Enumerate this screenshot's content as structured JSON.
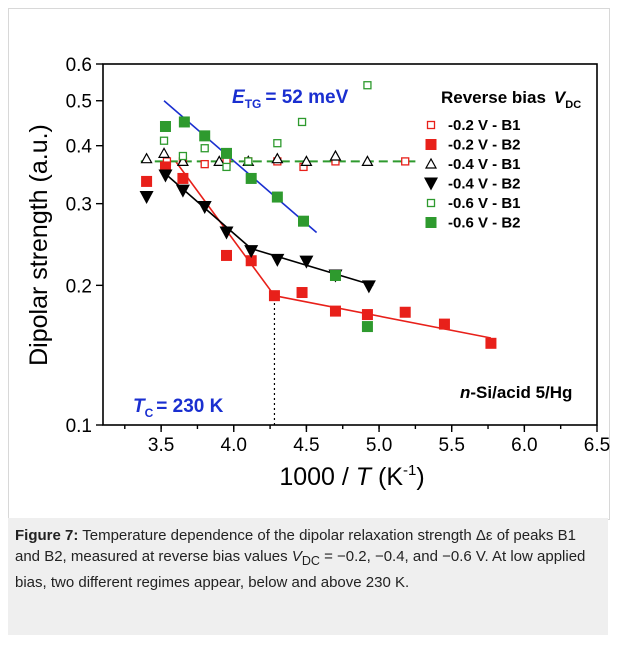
{
  "chart_data": {
    "type": "scatter",
    "xlabel_main": "1000 / ",
    "xlabel_var": "T",
    "xlabel_unit_open": " (K",
    "xlabel_unit_sup": "-1",
    "xlabel_unit_close": ")",
    "ylabel": "Dipolar strength (a.u.)",
    "xlim": [
      3.1,
      6.5
    ],
    "ylim": [
      0.1,
      0.6
    ],
    "yscale": "log",
    "x_ticks": [
      "3.5",
      "4.0",
      "4.5",
      "5.0",
      "5.5",
      "6.0",
      "6.5"
    ],
    "y_ticks": [
      "0.1",
      "0.2",
      "0.3",
      "0.4",
      "0.5",
      "0.6"
    ],
    "legend_title": "Reverse bias",
    "legend_title_var": "V",
    "legend_title_sub": "DC",
    "legend_placement": "right",
    "series": [
      {
        "name": "-0.2 V - B1",
        "color": "#e8201a",
        "marker": "square-open",
        "points": [
          [
            3.54,
            0.37
          ],
          [
            3.65,
            0.37
          ],
          [
            3.8,
            0.365
          ],
          [
            3.95,
            0.37
          ],
          [
            4.1,
            0.37
          ],
          [
            4.3,
            0.37
          ],
          [
            4.48,
            0.36
          ],
          [
            4.7,
            0.37
          ],
          [
            5.18,
            0.37
          ]
        ]
      },
      {
        "name": "-0.2 V - B2",
        "color": "#e8201a",
        "marker": "square-filled",
        "points": [
          [
            3.4,
            0.335
          ],
          [
            3.53,
            0.36
          ],
          [
            3.65,
            0.34
          ],
          [
            3.95,
            0.232
          ],
          [
            4.12,
            0.226
          ],
          [
            4.28,
            0.19
          ],
          [
            4.47,
            0.193
          ],
          [
            4.7,
            0.176
          ],
          [
            4.92,
            0.173
          ],
          [
            5.18,
            0.175
          ],
          [
            5.45,
            0.165
          ],
          [
            5.77,
            0.15
          ]
        ]
      },
      {
        "name": "-0.4 V - B1",
        "color": "#000000",
        "marker": "triangle-up-open",
        "points": [
          [
            3.4,
            0.375
          ],
          [
            3.52,
            0.385
          ],
          [
            3.65,
            0.37
          ],
          [
            3.9,
            0.37
          ],
          [
            4.1,
            0.37
          ],
          [
            4.3,
            0.375
          ],
          [
            4.5,
            0.37
          ],
          [
            4.7,
            0.38
          ],
          [
            4.92,
            0.37
          ]
        ]
      },
      {
        "name": "-0.4 V - B2",
        "color": "#000000",
        "marker": "triangle-down-filled",
        "points": [
          [
            3.4,
            0.31
          ],
          [
            3.53,
            0.345
          ],
          [
            3.65,
            0.32
          ],
          [
            3.8,
            0.295
          ],
          [
            3.95,
            0.26
          ],
          [
            4.12,
            0.237
          ],
          [
            4.3,
            0.227
          ],
          [
            4.5,
            0.225
          ],
          [
            4.7,
            0.21
          ],
          [
            4.93,
            0.199
          ]
        ]
      },
      {
        "name": "-0.6 V - B1",
        "color": "#2e9a2e",
        "marker": "square-open",
        "points": [
          [
            3.52,
            0.41
          ],
          [
            3.65,
            0.38
          ],
          [
            3.8,
            0.395
          ],
          [
            3.95,
            0.36
          ],
          [
            4.1,
            0.37
          ],
          [
            4.3,
            0.405
          ],
          [
            4.47,
            0.45
          ],
          [
            4.92,
            0.54
          ]
        ]
      },
      {
        "name": "-0.6 V - B2",
        "color": "#2e9a2e",
        "marker": "square-filled",
        "points": [
          [
            3.53,
            0.44
          ],
          [
            3.66,
            0.45
          ],
          [
            3.8,
            0.42
          ],
          [
            3.95,
            0.385
          ],
          [
            4.12,
            0.34
          ],
          [
            4.3,
            0.31
          ],
          [
            4.48,
            0.275
          ],
          [
            4.7,
            0.21
          ],
          [
            4.92,
            0.163
          ]
        ]
      }
    ],
    "fit_lines": [
      {
        "color": "#1a2fd0",
        "style": "solid",
        "points": [
          [
            3.52,
            0.5
          ],
          [
            4.57,
            0.26
          ]
        ]
      },
      {
        "color": "#e8201a",
        "style": "solid",
        "points": [
          [
            3.6,
            0.37
          ],
          [
            4.28,
            0.19
          ]
        ]
      },
      {
        "color": "#e8201a",
        "style": "solid",
        "points": [
          [
            4.28,
            0.19
          ],
          [
            5.77,
            0.154
          ]
        ]
      },
      {
        "color": "#000000",
        "style": "solid",
        "points": [
          [
            3.52,
            0.35
          ],
          [
            4.12,
            0.24
          ]
        ]
      },
      {
        "color": "#000000",
        "style": "solid",
        "points": [
          [
            4.12,
            0.24
          ],
          [
            4.96,
            0.2
          ]
        ]
      },
      {
        "color": "#2e9a2e",
        "style": "dashed",
        "points": [
          [
            3.36,
            0.37
          ],
          [
            5.25,
            0.37
          ]
        ]
      },
      {
        "color": "#000000",
        "style": "dotted",
        "points": [
          [
            4.28,
            0.1
          ],
          [
            4.28,
            0.19
          ]
        ]
      }
    ],
    "annotations": {
      "etg_var": "E",
      "etg_sub": "TG",
      "etg_value": "=  52 meV",
      "tc_var": "T",
      "tc_sub": "C",
      "tc_value": "= 230 K",
      "sample_var": "n",
      "sample_text": "-Si/acid 5/Hg"
    }
  },
  "caption": {
    "label": "Figure 7:",
    "text_a": "Temperature dependence of the dipolar relaxation strength Δε of peaks B1 and B2, measured at reverse bias values ",
    "var": "V",
    "sub": "DC",
    "text_b": " = −0.2, −0.4, and −0.6 V. At low applied bias, two different regimes appear, below and above 230 K."
  }
}
